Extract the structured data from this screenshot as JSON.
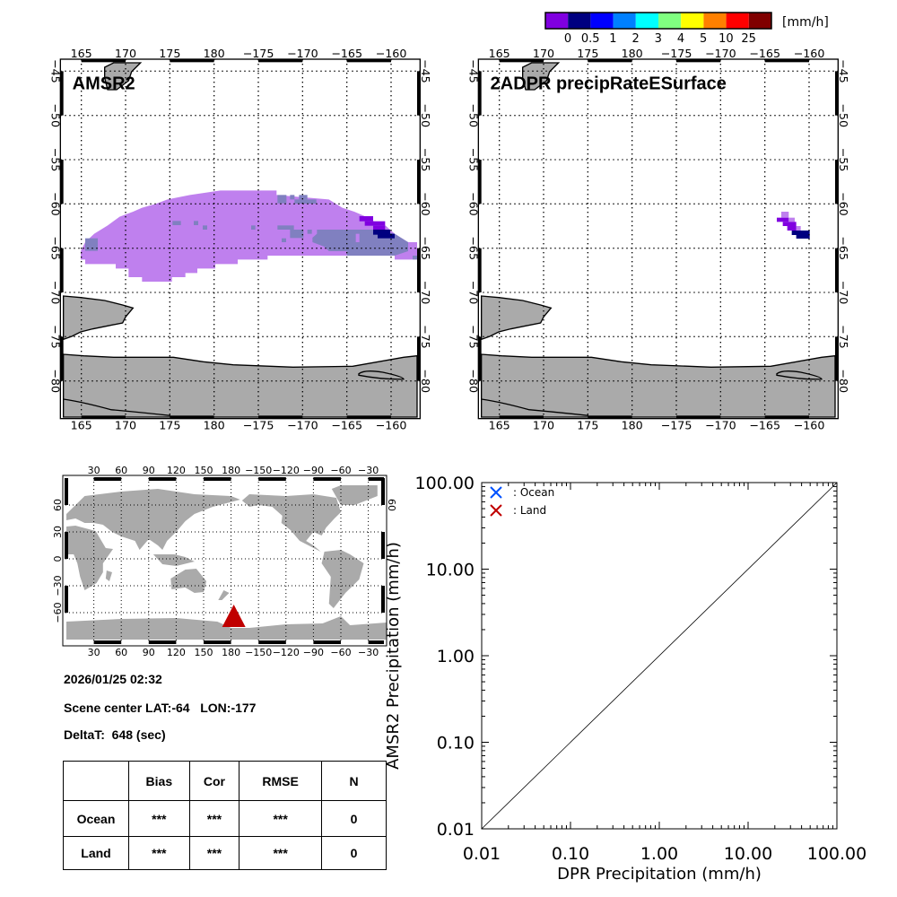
{
  "colorbar": {
    "colors": [
      "#8000e0",
      "#000080",
      "#0000ff",
      "#0080ff",
      "#00ffff",
      "#80ff80",
      "#ffff00",
      "#ff8000",
      "#ff0000",
      "#800000"
    ],
    "labels": [
      "0",
      "0.5",
      "1",
      "2",
      "3",
      "4",
      "5",
      "10",
      "25"
    ],
    "unit": "[mm/h]"
  },
  "maps": {
    "lon_ticks": [
      165,
      170,
      175,
      180,
      185,
      190,
      195,
      200
    ],
    "lon_labels": [
      "165",
      "170",
      "175",
      "180",
      "−175",
      "−170",
      "−165",
      "−160"
    ],
    "lat_ticks": [
      -45,
      -50,
      -55,
      -60,
      -65,
      -70,
      -75,
      -80
    ],
    "lat_labels": [
      "−45",
      "−50",
      "−55",
      "−60",
      "−65",
      "−70",
      "−75",
      "−80"
    ],
    "left_title": "AMSR2",
    "right_title": "2ADPR precipRateESurface",
    "colors": {
      "light": "#bf80ee",
      "mid": "#8080c0",
      "violet": "#8000e0",
      "navy": "#000080",
      "land": "#aaaaaa"
    }
  },
  "world": {
    "lon_ticks": [
      30,
      60,
      90,
      120,
      150,
      180,
      210,
      240,
      270,
      300,
      330
    ],
    "lon_labels": [
      "30",
      "60",
      "90",
      "120",
      "150",
      "180",
      "−150",
      "−120",
      "−90",
      "−60",
      "−30"
    ],
    "lat_ticks": [
      60,
      30,
      0,
      -30,
      -60
    ],
    "lat_labels": [
      "60",
      "30",
      "0",
      "−30",
      "−60"
    ],
    "right_lat_label": "60",
    "marker": {
      "lon": 183,
      "lat": -64,
      "color": "#c00000"
    }
  },
  "info": {
    "datetime": "2026/01/25 02:32",
    "scene_center": "Scene center LAT:-64   LON:-177",
    "delta": "DeltaT:  648 (sec)"
  },
  "table": {
    "headers": [
      "",
      "Bias",
      "Cor",
      "RMSE",
      "N"
    ],
    "rows": [
      {
        "label": "Ocean",
        "bias": "***",
        "cor": "***",
        "rmse": "***",
        "n": "0"
      },
      {
        "label": "Land",
        "bias": "***",
        "cor": "***",
        "rmse": "***",
        "n": "0"
      }
    ]
  },
  "chart_data": {
    "type": "scatter",
    "xlabel": "DPR Precipitation (mm/h)",
    "ylabel": "AMSR2 Precipitation (mm/h)",
    "xscale": "log",
    "yscale": "log",
    "xlim": [
      0.01,
      100
    ],
    "ylim": [
      0.01,
      100
    ],
    "ticks": [
      0.01,
      0.1,
      1,
      10,
      100
    ],
    "tick_labels": [
      "0.01",
      "0.10",
      "1.00",
      "10.00",
      "100.00"
    ],
    "legend_position": "top-left",
    "series": [
      {
        "name": ": Ocean",
        "color": "#0050ff",
        "marker": "x",
        "points": []
      },
      {
        "name": ": Land",
        "color": "#c00000",
        "marker": "x",
        "points": []
      }
    ],
    "reference_line": "1:1"
  }
}
